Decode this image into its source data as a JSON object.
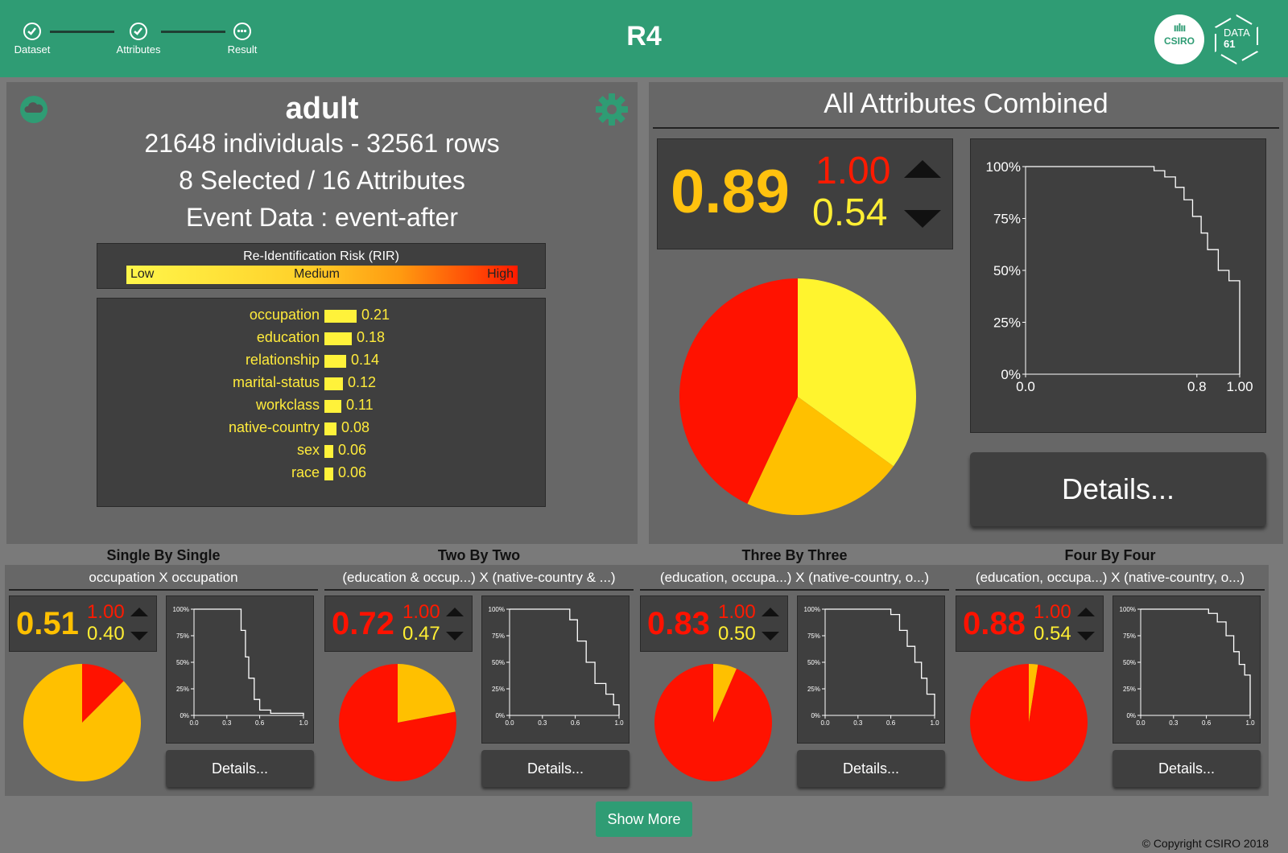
{
  "header": {
    "title": "R4",
    "steps": [
      {
        "label": "Dataset",
        "state": "done"
      },
      {
        "label": "Attributes",
        "state": "done"
      },
      {
        "label": "Result",
        "state": "current"
      }
    ],
    "logo_csiro": "CSIRO",
    "logo_data61_line1": "DATA",
    "logo_data61_line2": "61"
  },
  "dataset": {
    "name": "adult",
    "summary": "21648 individuals - 32561 rows",
    "selection": "8 Selected / 16 Attributes",
    "event": "Event Data : event-after",
    "rir": {
      "title": "Re-Identification Risk (RIR)",
      "low": "Low",
      "medium": "Medium",
      "high": "High"
    },
    "attributes": [
      {
        "name": "occupation",
        "value": "0.21",
        "v": 0.21
      },
      {
        "name": "education",
        "value": "0.18",
        "v": 0.18
      },
      {
        "name": "relationship",
        "value": "0.14",
        "v": 0.14
      },
      {
        "name": "marital-status",
        "value": "0.12",
        "v": 0.12
      },
      {
        "name": "workclass",
        "value": "0.11",
        "v": 0.11
      },
      {
        "name": "native-country",
        "value": "0.08",
        "v": 0.08
      },
      {
        "name": "sex",
        "value": "0.06",
        "v": 0.06
      },
      {
        "name": "race",
        "value": "0.06",
        "v": 0.06
      }
    ]
  },
  "combined": {
    "title": "All Attributes Combined",
    "score": "0.89",
    "high": "1.00",
    "low": "0.54",
    "details_label": "Details...",
    "pie": [
      {
        "label": "yellow",
        "value": 0.35,
        "color": "#fff42e"
      },
      {
        "label": "orange",
        "value": 0.22,
        "color": "#ffc000"
      },
      {
        "label": "red",
        "value": 0.43,
        "color": "#ff1200"
      }
    ],
    "cdf": {
      "yticks": [
        "100%",
        "75%",
        "50%",
        "25%",
        "0%"
      ],
      "xticks": [
        {
          "v": 0.0,
          "t": "0.0"
        },
        {
          "v": 0.8,
          "t": "0.8"
        },
        {
          "v": 1.0,
          "t": "1.00"
        }
      ],
      "points": [
        [
          0.0,
          1.0
        ],
        [
          0.54,
          1.0
        ],
        [
          0.6,
          0.98
        ],
        [
          0.65,
          0.95
        ],
        [
          0.7,
          0.9
        ],
        [
          0.74,
          0.84
        ],
        [
          0.78,
          0.76
        ],
        [
          0.82,
          0.68
        ],
        [
          0.85,
          0.6
        ],
        [
          0.9,
          0.5
        ],
        [
          0.95,
          0.45
        ],
        [
          1.0,
          0.0
        ]
      ]
    }
  },
  "groups": [
    {
      "title": "Single By Single",
      "subtitle": "occupation X occupation",
      "score": "0.51",
      "score_color": "#ffc000",
      "high": "1.00",
      "low": "0.40",
      "details_label": "Details...",
      "pie": [
        {
          "label": "red",
          "value": 0.125,
          "color": "#ff1200"
        },
        {
          "label": "orange",
          "value": 0.875,
          "color": "#ffc000"
        }
      ],
      "cdf": {
        "yticks": [
          "100%",
          "75%",
          "50%",
          "25%",
          "0%"
        ],
        "xticks": [
          {
            "v": 0.0,
            "t": "0.0"
          },
          {
            "v": 0.3,
            "t": "0.3"
          },
          {
            "v": 0.6,
            "t": "0.6"
          },
          {
            "v": 1.0,
            "t": "1.0"
          }
        ],
        "points": [
          [
            0.0,
            1.0
          ],
          [
            0.4,
            1.0
          ],
          [
            0.43,
            0.8
          ],
          [
            0.47,
            0.55
          ],
          [
            0.5,
            0.35
          ],
          [
            0.55,
            0.15
          ],
          [
            0.6,
            0.05
          ],
          [
            0.7,
            0.02
          ],
          [
            1.0,
            0.0
          ]
        ]
      }
    },
    {
      "title": "Two By Two",
      "subtitle": "(education & occup...) X (native-country & ...)",
      "score": "0.72",
      "score_color": "#ff1200",
      "high": "1.00",
      "low": "0.47",
      "details_label": "Details...",
      "pie": [
        {
          "label": "orange",
          "value": 0.22,
          "color": "#ffc000"
        },
        {
          "label": "red",
          "value": 0.78,
          "color": "#ff1200"
        }
      ],
      "cdf": {
        "yticks": [
          "100%",
          "75%",
          "50%",
          "25%",
          "0%"
        ],
        "xticks": [
          {
            "v": 0.0,
            "t": "0.0"
          },
          {
            "v": 0.3,
            "t": "0.3"
          },
          {
            "v": 0.6,
            "t": "0.6"
          },
          {
            "v": 1.0,
            "t": "1.0"
          }
        ],
        "points": [
          [
            0.0,
            1.0
          ],
          [
            0.47,
            1.0
          ],
          [
            0.55,
            0.9
          ],
          [
            0.62,
            0.7
          ],
          [
            0.7,
            0.5
          ],
          [
            0.78,
            0.3
          ],
          [
            0.88,
            0.2
          ],
          [
            0.95,
            0.1
          ],
          [
            1.0,
            0.0
          ]
        ]
      }
    },
    {
      "title": "Three By Three",
      "subtitle": "(education, occupa...) X (native-country, o...)",
      "score": "0.83",
      "score_color": "#ff1200",
      "high": "1.00",
      "low": "0.50",
      "details_label": "Details...",
      "pie": [
        {
          "label": "orange",
          "value": 0.065,
          "color": "#ffc000"
        },
        {
          "label": "red",
          "value": 0.935,
          "color": "#ff1200"
        }
      ],
      "cdf": {
        "yticks": [
          "100%",
          "75%",
          "50%",
          "25%",
          "0%"
        ],
        "xticks": [
          {
            "v": 0.0,
            "t": "0.0"
          },
          {
            "v": 0.3,
            "t": "0.3"
          },
          {
            "v": 0.6,
            "t": "0.6"
          },
          {
            "v": 1.0,
            "t": "1.0"
          }
        ],
        "points": [
          [
            0.0,
            1.0
          ],
          [
            0.5,
            1.0
          ],
          [
            0.6,
            0.95
          ],
          [
            0.68,
            0.8
          ],
          [
            0.75,
            0.65
          ],
          [
            0.82,
            0.5
          ],
          [
            0.88,
            0.35
          ],
          [
            0.93,
            0.2
          ],
          [
            1.0,
            0.0
          ]
        ]
      }
    },
    {
      "title": "Four By Four",
      "subtitle": "(education, occupa...) X (native-country, o...)",
      "score": "0.88",
      "score_color": "#ff1200",
      "high": "1.00",
      "low": "0.54",
      "details_label": "Details...",
      "pie": [
        {
          "label": "orange",
          "value": 0.025,
          "color": "#ffc000"
        },
        {
          "label": "red",
          "value": 0.975,
          "color": "#ff1200"
        }
      ],
      "cdf": {
        "yticks": [
          "100%",
          "75%",
          "50%",
          "25%",
          "0%"
        ],
        "xticks": [
          {
            "v": 0.0,
            "t": "0.0"
          },
          {
            "v": 0.3,
            "t": "0.3"
          },
          {
            "v": 0.6,
            "t": "0.6"
          },
          {
            "v": 1.0,
            "t": "1.0"
          }
        ],
        "points": [
          [
            0.0,
            1.0
          ],
          [
            0.54,
            1.0
          ],
          [
            0.62,
            0.96
          ],
          [
            0.7,
            0.88
          ],
          [
            0.78,
            0.75
          ],
          [
            0.85,
            0.6
          ],
          [
            0.9,
            0.48
          ],
          [
            0.95,
            0.38
          ],
          [
            1.0,
            0.0
          ]
        ]
      }
    }
  ],
  "footer": {
    "show_more": "Show More",
    "copyright": "© Copyright CSIRO 2018"
  }
}
